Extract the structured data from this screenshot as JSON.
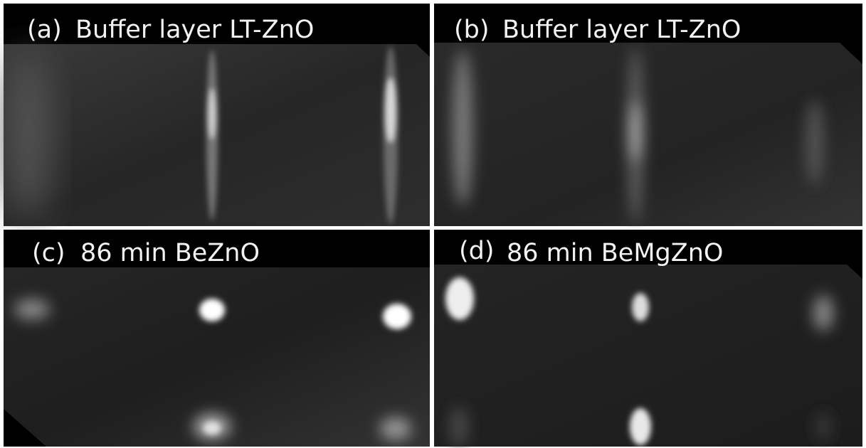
{
  "panels": [
    {
      "tag": "(a)",
      "caption": "Buffer layer LT-ZnO"
    },
    {
      "tag": "(b)",
      "caption": "Buffer layer LT-ZnO"
    },
    {
      "tag": "(c)",
      "caption": "86 min BeZnO"
    },
    {
      "tag": "(d)",
      "caption": "86 min BeMgZnO"
    }
  ]
}
